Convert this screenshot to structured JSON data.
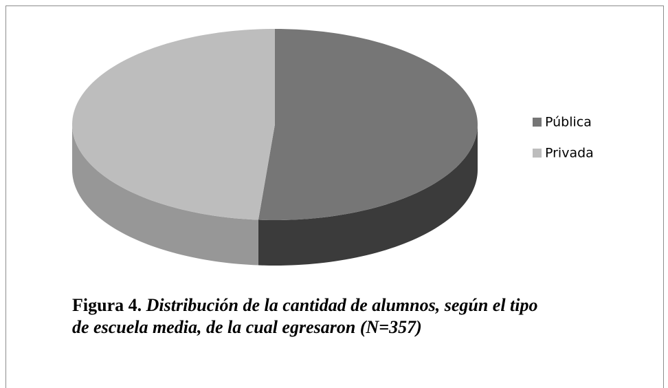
{
  "chart_data": {
    "type": "pie",
    "categories": [
      "Pública",
      "Privada"
    ],
    "values": [
      51.3,
      48.7
    ],
    "colors": [
      "#767676",
      "#bdbdbd"
    ],
    "legend": "right",
    "caption": {
      "label": "Figura 4.",
      "text": "Distribución de la cantidad de alumnos, según el tipo de escuela media, de la cual egresaron (N=357)"
    }
  }
}
